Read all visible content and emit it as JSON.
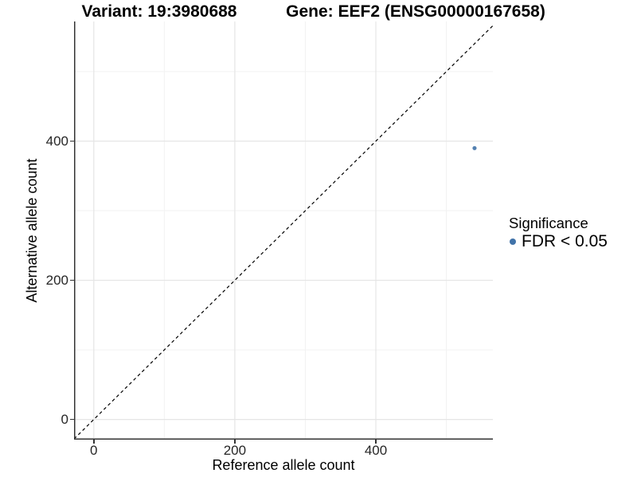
{
  "titles": {
    "variant": "Variant: 19:3980688",
    "gene": "Gene: EEF2 (ENSG00000167658)"
  },
  "axes": {
    "x_label": "Reference allele count",
    "y_label": "Alternative allele count"
  },
  "legend": {
    "title": "Significance",
    "entries": [
      {
        "label": "FDR < 0.05",
        "color": "#4173a9"
      }
    ]
  },
  "colors": {
    "point": "#4173a9",
    "axis_line": "#333333",
    "grid_major": "#e5e5e5",
    "grid_minor": "#f2f2f2",
    "reference_line": "#000000",
    "tick_text": "#262626",
    "title_text": "#000000"
  },
  "chart_data": {
    "type": "scatter",
    "title": "Variant: 19:3980688    Gene: EEF2 (ENSG00000167658)",
    "xlabel": "Reference allele count",
    "ylabel": "Alternative allele count",
    "xlim": [
      -28,
      566
    ],
    "ylim": [
      -29,
      572
    ],
    "x_major_ticks": [
      0,
      200,
      400
    ],
    "x_minor_ticks": [
      100,
      300,
      500
    ],
    "y_major_ticks": [
      0,
      200,
      400
    ],
    "y_minor_ticks": [
      100,
      300,
      500
    ],
    "grid": true,
    "legend_position": "right",
    "legend_title": "Significance",
    "reference_line": {
      "kind": "identity",
      "slope": 1,
      "intercept": 0,
      "style": "dashed"
    },
    "series": [
      {
        "name": "FDR < 0.05",
        "color": "#4173a9",
        "point_radius": 2.6,
        "points": [
          {
            "x": 540,
            "y": 390
          }
        ]
      }
    ]
  }
}
